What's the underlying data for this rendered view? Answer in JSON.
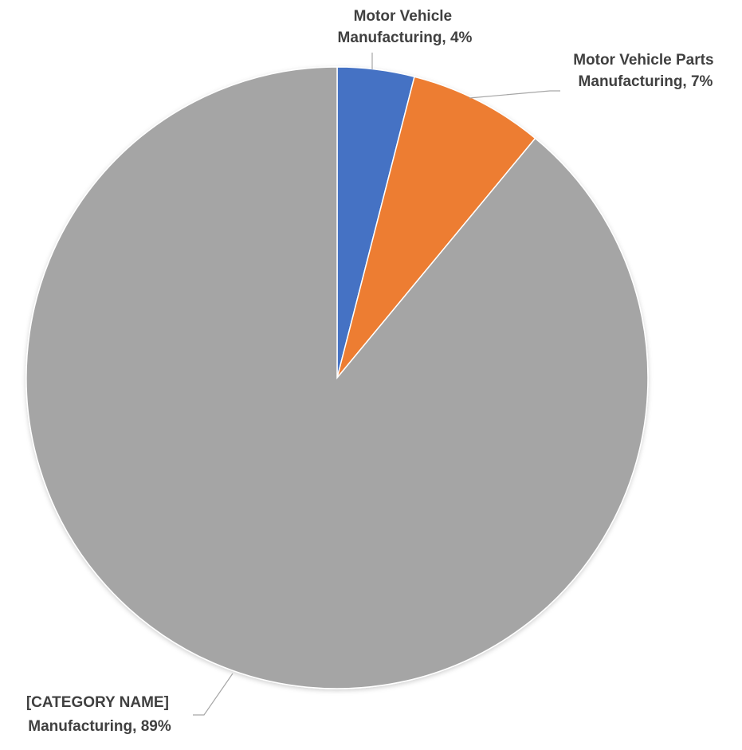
{
  "chart_data": {
    "type": "pie",
    "title": "",
    "slices": [
      {
        "label_lines": [
          "Motor Vehicle",
          "Manufacturing, 4%"
        ],
        "category": "Motor Vehicle Manufacturing",
        "value": 4,
        "color": "#4472c4"
      },
      {
        "label_lines": [
          "Motor Vehicle Parts",
          "Manufacturing, 7%"
        ],
        "category": "Motor Vehicle Parts Manufacturing",
        "value": 7,
        "color": "#ed7d31"
      },
      {
        "label_lines": [
          "[CATEGORY NAME]",
          "Manufacturing, 89%"
        ],
        "category": "[CATEGORY NAME] Manufacturing",
        "value": 89,
        "color": "#a5a5a5"
      }
    ],
    "start_angle_deg": 0,
    "direction": "clockwise",
    "legend": "none",
    "labels": "outside with leader lines"
  }
}
